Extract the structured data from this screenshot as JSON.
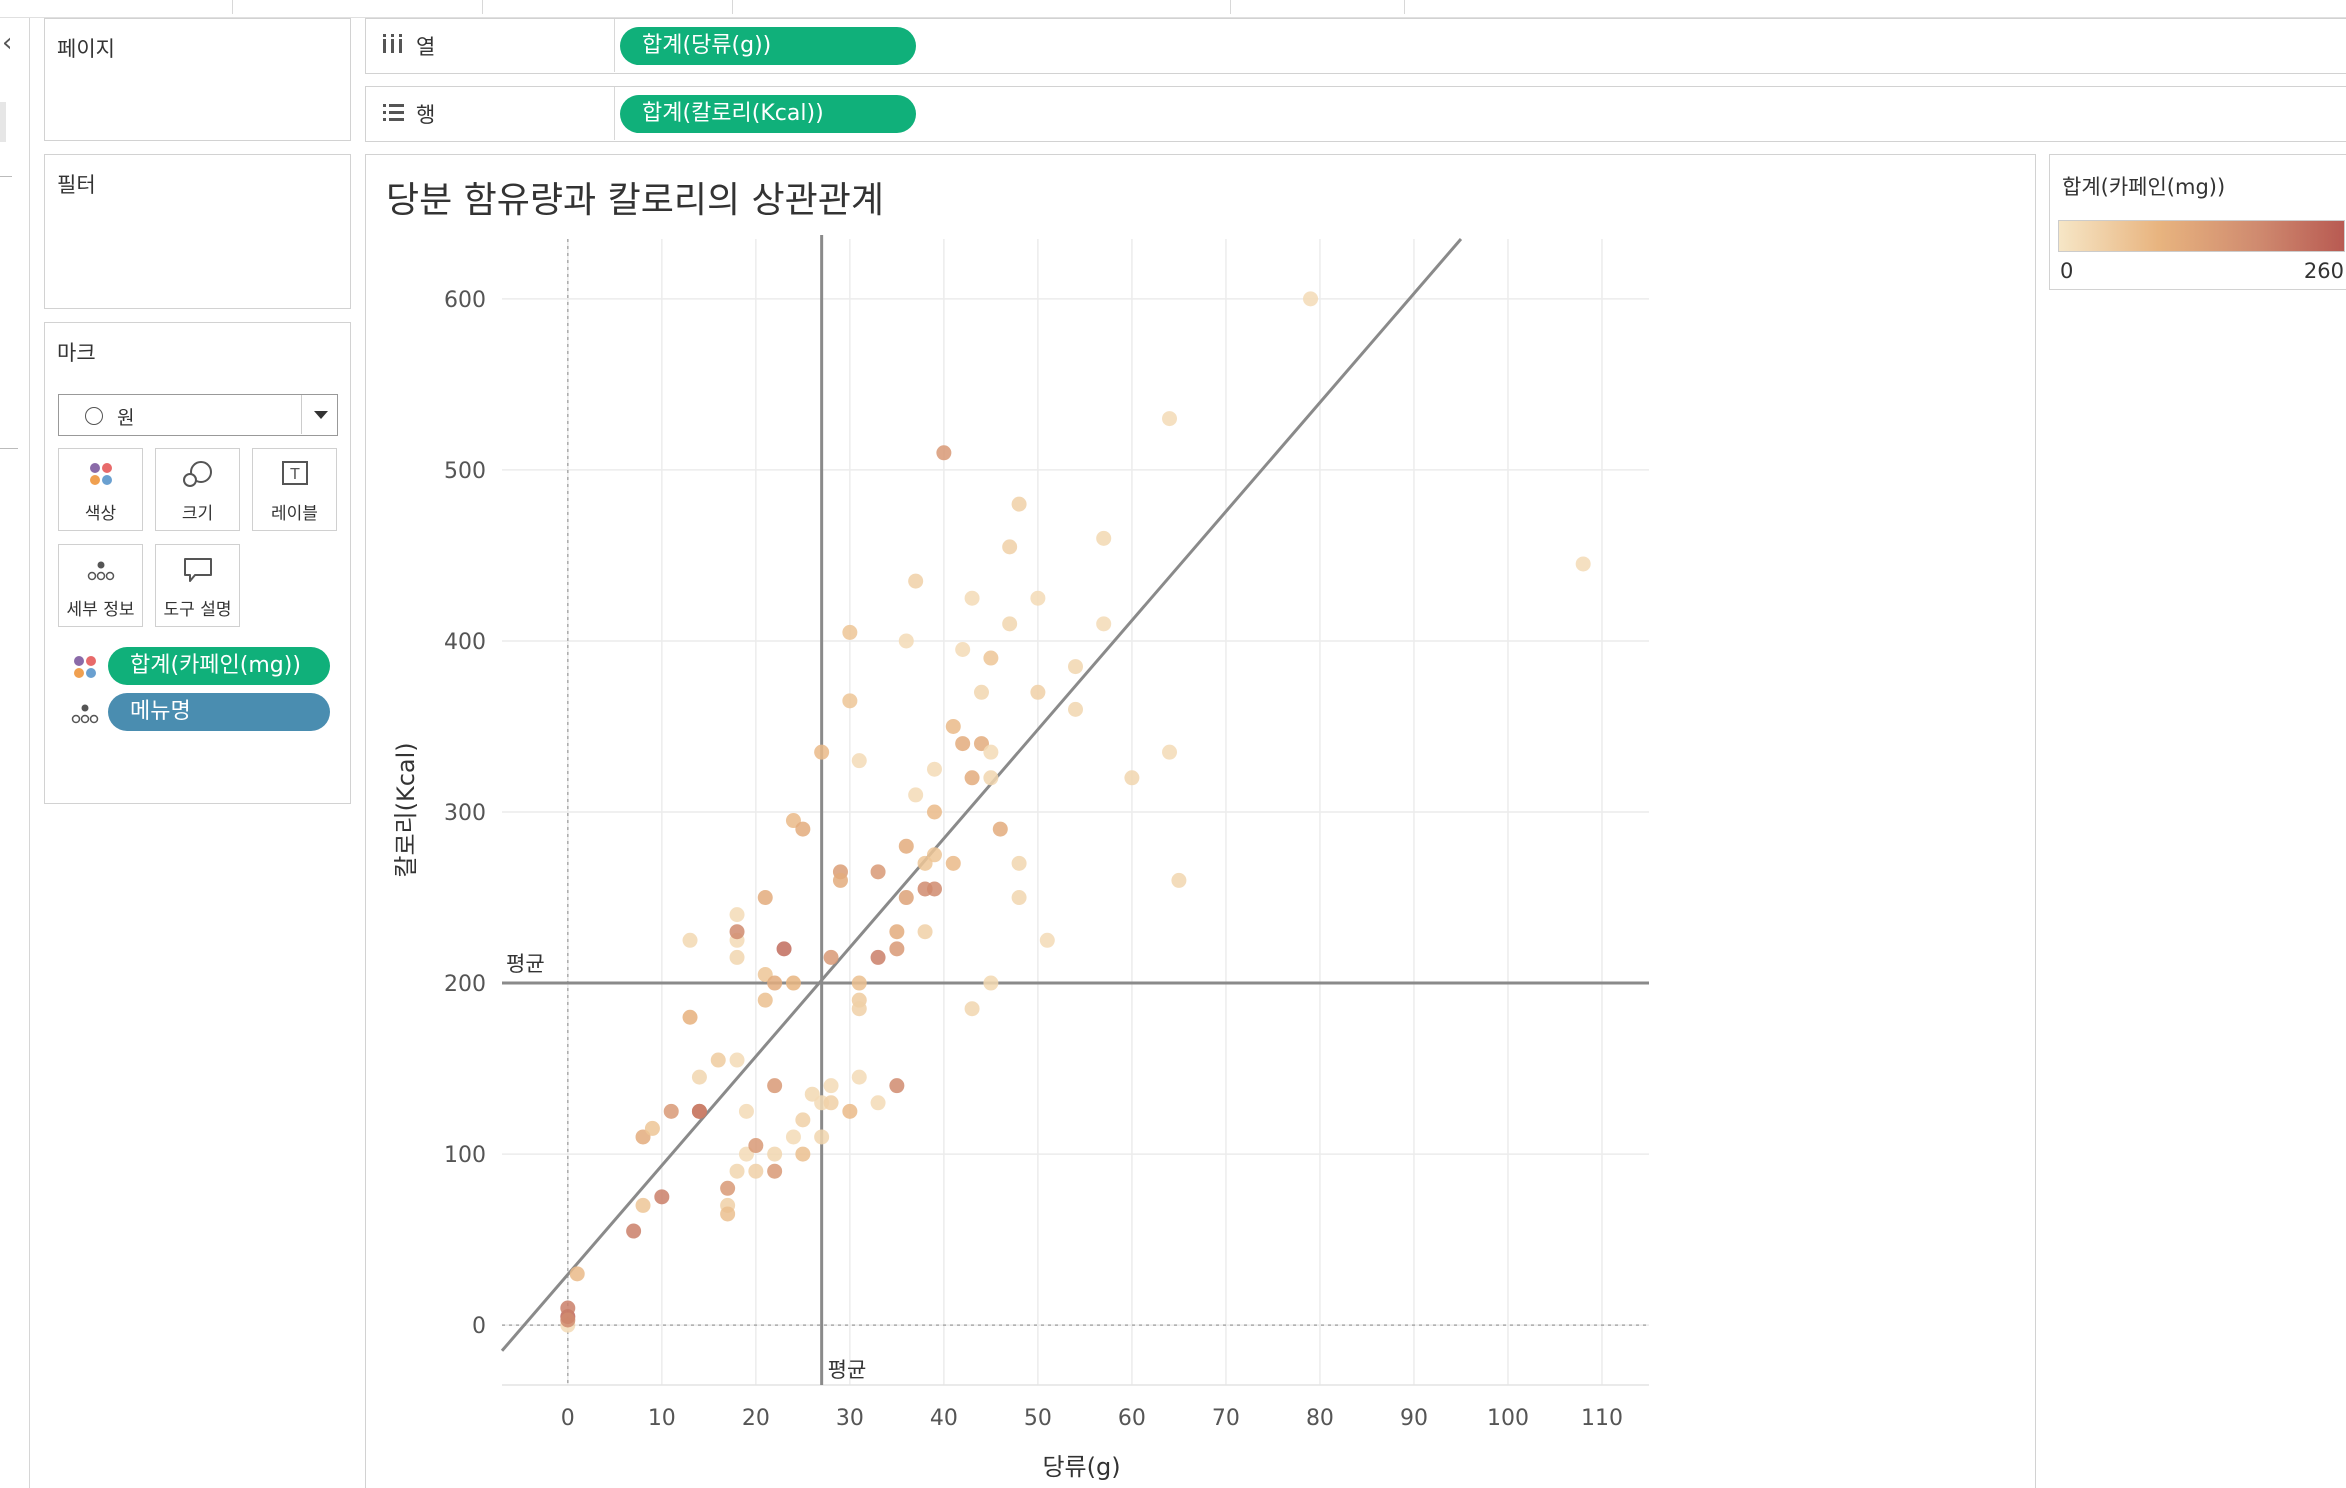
{
  "panels": {
    "pages": {
      "title": "페이지"
    },
    "filters": {
      "title": "필터"
    },
    "marks": {
      "title": "마크",
      "mark_type": "원",
      "buttons": [
        {
          "label": "색상",
          "icon": "color-dots-icon"
        },
        {
          "label": "크기",
          "icon": "size-bubbles-icon"
        },
        {
          "label": "레이블",
          "icon": "text-label-icon"
        },
        {
          "label": "세부 정보",
          "icon": "detail-dots-icon"
        },
        {
          "label": "도구 설명",
          "icon": "tooltip-bubble-icon"
        }
      ],
      "fields": [
        {
          "label": "합계(카페인(mg))",
          "role": "color",
          "icon": "color-dots-icon"
        },
        {
          "label": "메뉴명",
          "role": "detail",
          "icon": "detail-dots-icon"
        }
      ]
    }
  },
  "shelves": {
    "columns": {
      "label": "열",
      "icon": "columns-icon",
      "pill": "합계(당류(g))"
    },
    "rows": {
      "label": "행",
      "icon": "rows-icon",
      "pill": "합계(칼로리(Kcal))"
    }
  },
  "legend": {
    "title": "합계(카페인(mg))",
    "min_label": "0",
    "max_label": "260",
    "color_low": "#f6e6c6",
    "color_high": "#b85a52"
  },
  "colors": {
    "pill_green": "#10b07a",
    "pill_blue": "#4a8db0"
  },
  "chart_data": {
    "type": "scatter",
    "title": "당분 함유량과 칼로리의 상관관계",
    "xlabel": "당류(g)",
    "ylabel": "칼로리(Kcal)",
    "xlim": [
      -7,
      115
    ],
    "ylim": [
      -35,
      635
    ],
    "xticks": [
      "0",
      "10",
      "20",
      "30",
      "40",
      "50",
      "60",
      "70",
      "80",
      "90",
      "100",
      "110"
    ],
    "xtick_values": [
      0,
      10,
      20,
      30,
      40,
      50,
      60,
      70,
      80,
      90,
      100,
      110
    ],
    "yticks": [
      "0",
      "100",
      "200",
      "300",
      "400",
      "500",
      "600"
    ],
    "ytick_values": [
      0,
      100,
      200,
      300,
      400,
      500,
      600
    ],
    "grid": true,
    "color_scale": {
      "field": "카페인(mg)",
      "min": 0,
      "max": 260
    },
    "reference_lines": {
      "x_average": {
        "label": "평균",
        "value": 27
      },
      "y_average": {
        "label": "평균",
        "value": 200
      }
    },
    "trend_line": {
      "from": [
        -7,
        -15
      ],
      "to": [
        95,
        635
      ]
    },
    "points": [
      {
        "x": 0,
        "y": 0,
        "c": 20
      },
      {
        "x": 0,
        "y": 5,
        "c": 240
      },
      {
        "x": 0,
        "y": 10,
        "c": 200
      },
      {
        "x": 0,
        "y": 3,
        "c": 180
      },
      {
        "x": 1,
        "y": 30,
        "c": 80
      },
      {
        "x": 7,
        "y": 55,
        "c": 200
      },
      {
        "x": 8,
        "y": 70,
        "c": 60
      },
      {
        "x": 10,
        "y": 75,
        "c": 200
      },
      {
        "x": 8,
        "y": 110,
        "c": 110
      },
      {
        "x": 9,
        "y": 115,
        "c": 60
      },
      {
        "x": 11,
        "y": 125,
        "c": 150
      },
      {
        "x": 14,
        "y": 125,
        "c": 220
      },
      {
        "x": 14,
        "y": 125,
        "c": 200
      },
      {
        "x": 13,
        "y": 180,
        "c": 100
      },
      {
        "x": 13,
        "y": 225,
        "c": 25
      },
      {
        "x": 14,
        "y": 145,
        "c": 30
      },
      {
        "x": 16,
        "y": 155,
        "c": 50
      },
      {
        "x": 17,
        "y": 80,
        "c": 150
      },
      {
        "x": 17,
        "y": 70,
        "c": 40
      },
      {
        "x": 17,
        "y": 65,
        "c": 70
      },
      {
        "x": 18,
        "y": 90,
        "c": 30
      },
      {
        "x": 18,
        "y": 155,
        "c": 20
      },
      {
        "x": 18,
        "y": 215,
        "c": 30
      },
      {
        "x": 18,
        "y": 225,
        "c": 20
      },
      {
        "x": 18,
        "y": 240,
        "c": 20
      },
      {
        "x": 18,
        "y": 230,
        "c": 180
      },
      {
        "x": 19,
        "y": 100,
        "c": 20
      },
      {
        "x": 19,
        "y": 125,
        "c": 20
      },
      {
        "x": 20,
        "y": 105,
        "c": 150
      },
      {
        "x": 20,
        "y": 90,
        "c": 40
      },
      {
        "x": 21,
        "y": 250,
        "c": 110
      },
      {
        "x": 21,
        "y": 205,
        "c": 60
      },
      {
        "x": 21,
        "y": 190,
        "c": 70
      },
      {
        "x": 22,
        "y": 200,
        "c": 110
      },
      {
        "x": 22,
        "y": 140,
        "c": 150
      },
      {
        "x": 22,
        "y": 90,
        "c": 150
      },
      {
        "x": 22,
        "y": 100,
        "c": 30
      },
      {
        "x": 23,
        "y": 220,
        "c": 230
      },
      {
        "x": 24,
        "y": 295,
        "c": 80
      },
      {
        "x": 24,
        "y": 200,
        "c": 90
      },
      {
        "x": 24,
        "y": 110,
        "c": 20
      },
      {
        "x": 25,
        "y": 290,
        "c": 110
      },
      {
        "x": 25,
        "y": 120,
        "c": 40
      },
      {
        "x": 25,
        "y": 100,
        "c": 70
      },
      {
        "x": 26,
        "y": 135,
        "c": 25
      },
      {
        "x": 27,
        "y": 110,
        "c": 30
      },
      {
        "x": 27,
        "y": 335,
        "c": 80
      },
      {
        "x": 27,
        "y": 130,
        "c": 20
      },
      {
        "x": 28,
        "y": 215,
        "c": 150
      },
      {
        "x": 28,
        "y": 140,
        "c": 20
      },
      {
        "x": 28,
        "y": 130,
        "c": 40
      },
      {
        "x": 29,
        "y": 265,
        "c": 140
      },
      {
        "x": 29,
        "y": 260,
        "c": 110
      },
      {
        "x": 30,
        "y": 405,
        "c": 60
      },
      {
        "x": 30,
        "y": 365,
        "c": 60
      },
      {
        "x": 30,
        "y": 125,
        "c": 80
      },
      {
        "x": 31,
        "y": 330,
        "c": 20
      },
      {
        "x": 31,
        "y": 200,
        "c": 70
      },
      {
        "x": 31,
        "y": 190,
        "c": 50
      },
      {
        "x": 31,
        "y": 185,
        "c": 40
      },
      {
        "x": 31,
        "y": 145,
        "c": 20
      },
      {
        "x": 33,
        "y": 265,
        "c": 150
      },
      {
        "x": 33,
        "y": 215,
        "c": 200
      },
      {
        "x": 33,
        "y": 130,
        "c": 20
      },
      {
        "x": 35,
        "y": 220,
        "c": 150
      },
      {
        "x": 35,
        "y": 140,
        "c": 180
      },
      {
        "x": 35,
        "y": 230,
        "c": 110
      },
      {
        "x": 36,
        "y": 280,
        "c": 110
      },
      {
        "x": 36,
        "y": 250,
        "c": 130
      },
      {
        "x": 36,
        "y": 400,
        "c": 20
      },
      {
        "x": 37,
        "y": 435,
        "c": 40
      },
      {
        "x": 37,
        "y": 310,
        "c": 20
      },
      {
        "x": 38,
        "y": 270,
        "c": 60
      },
      {
        "x": 38,
        "y": 255,
        "c": 180
      },
      {
        "x": 38,
        "y": 230,
        "c": 40
      },
      {
        "x": 39,
        "y": 325,
        "c": 20
      },
      {
        "x": 39,
        "y": 300,
        "c": 80
      },
      {
        "x": 39,
        "y": 275,
        "c": 60
      },
      {
        "x": 39,
        "y": 255,
        "c": 180
      },
      {
        "x": 40,
        "y": 510,
        "c": 150
      },
      {
        "x": 41,
        "y": 350,
        "c": 80
      },
      {
        "x": 41,
        "y": 270,
        "c": 80
      },
      {
        "x": 42,
        "y": 395,
        "c": 20
      },
      {
        "x": 42,
        "y": 340,
        "c": 110
      },
      {
        "x": 43,
        "y": 425,
        "c": 20
      },
      {
        "x": 43,
        "y": 320,
        "c": 110
      },
      {
        "x": 43,
        "y": 185,
        "c": 30
      },
      {
        "x": 44,
        "y": 370,
        "c": 30
      },
      {
        "x": 44,
        "y": 340,
        "c": 110
      },
      {
        "x": 45,
        "y": 390,
        "c": 60
      },
      {
        "x": 45,
        "y": 335,
        "c": 20
      },
      {
        "x": 45,
        "y": 320,
        "c": 30
      },
      {
        "x": 45,
        "y": 200,
        "c": 25
      },
      {
        "x": 46,
        "y": 290,
        "c": 110
      },
      {
        "x": 47,
        "y": 455,
        "c": 40
      },
      {
        "x": 47,
        "y": 410,
        "c": 30
      },
      {
        "x": 48,
        "y": 480,
        "c": 40
      },
      {
        "x": 48,
        "y": 270,
        "c": 30
      },
      {
        "x": 48,
        "y": 250,
        "c": 30
      },
      {
        "x": 50,
        "y": 425,
        "c": 20
      },
      {
        "x": 50,
        "y": 370,
        "c": 40
      },
      {
        "x": 51,
        "y": 225,
        "c": 20
      },
      {
        "x": 54,
        "y": 385,
        "c": 30
      },
      {
        "x": 54,
        "y": 360,
        "c": 30
      },
      {
        "x": 57,
        "y": 460,
        "c": 25
      },
      {
        "x": 57,
        "y": 410,
        "c": 20
      },
      {
        "x": 60,
        "y": 320,
        "c": 30
      },
      {
        "x": 64,
        "y": 530,
        "c": 20
      },
      {
        "x": 64,
        "y": 335,
        "c": 20
      },
      {
        "x": 65,
        "y": 260,
        "c": 30
      },
      {
        "x": 79,
        "y": 600,
        "c": 20
      },
      {
        "x": 108,
        "y": 445,
        "c": 20
      }
    ]
  }
}
